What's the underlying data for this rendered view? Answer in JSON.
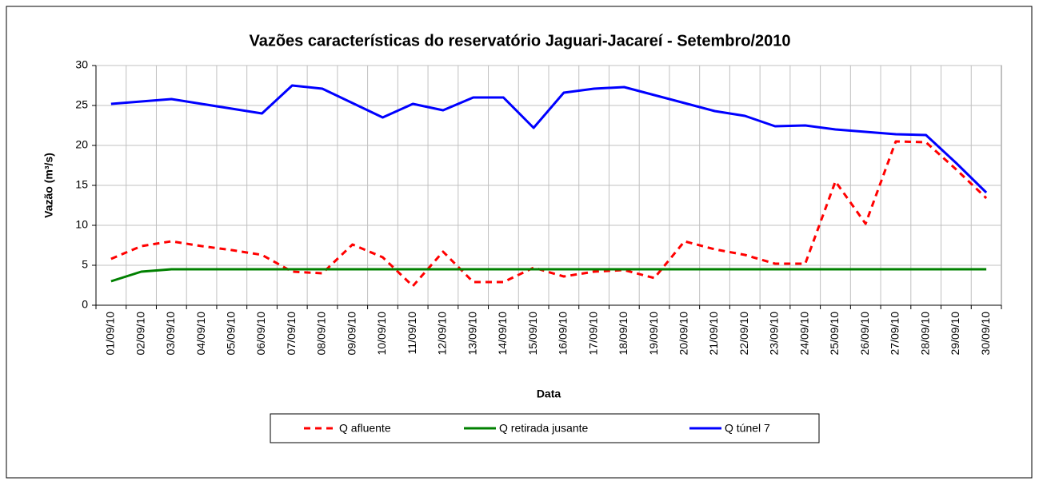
{
  "chart_data": {
    "type": "line",
    "title": "Vazões características do  reservatório Jaguari-Jacareí - Setembro/2010",
    "x_label": "Data",
    "y_label": "Vazão (m³/s)",
    "categories": [
      "01/09/10",
      "02/09/10",
      "03/09/10",
      "04/09/10",
      "05/09/10",
      "06/09/10",
      "07/09/10",
      "08/09/10",
      "09/09/10",
      "10/09/10",
      "11/09/10",
      "12/09/10",
      "13/09/10",
      "14/09/10",
      "15/09/10",
      "16/09/10",
      "17/09/10",
      "18/09/10",
      "19/09/10",
      "20/09/10",
      "21/09/10",
      "22/09/10",
      "23/09/10",
      "24/09/10",
      "25/09/10",
      "26/09/10",
      "27/09/10",
      "28/09/10",
      "29/09/10",
      "30/09/10"
    ],
    "series": [
      {
        "name": "Q afluente",
        "color": "#ff0000",
        "dash": true,
        "values": [
          5.8,
          7.4,
          8.0,
          7.4,
          6.9,
          6.3,
          4.2,
          4.0,
          7.6,
          6.0,
          2.4,
          6.7,
          2.9,
          2.9,
          4.7,
          3.6,
          4.2,
          4.4,
          3.4,
          8.0,
          7.0,
          6.3,
          5.2,
          5.2,
          15.5,
          10.2,
          20.5,
          20.4,
          17.0,
          13.4
        ]
      },
      {
        "name": "Q retirada jusante",
        "color": "#008000",
        "dash": false,
        "values": [
          3.0,
          4.2,
          4.5,
          4.5,
          4.5,
          4.5,
          4.5,
          4.5,
          4.5,
          4.5,
          4.5,
          4.5,
          4.5,
          4.5,
          4.5,
          4.5,
          4.5,
          4.5,
          4.5,
          4.5,
          4.5,
          4.5,
          4.5,
          4.5,
          4.5,
          4.5,
          4.5,
          4.5,
          4.5,
          4.5
        ]
      },
      {
        "name": "Q túnel 7",
        "color": "#0000ff",
        "dash": false,
        "values": [
          25.2,
          25.5,
          25.8,
          25.2,
          24.6,
          24.0,
          27.5,
          27.1,
          25.3,
          23.5,
          25.2,
          24.4,
          26.0,
          26.0,
          22.2,
          26.6,
          27.1,
          27.3,
          26.3,
          25.3,
          24.3,
          23.7,
          22.4,
          22.5,
          22.0,
          21.7,
          21.4,
          21.3,
          17.8,
          14.1
        ]
      }
    ],
    "ylim": [
      0,
      30
    ],
    "yticks": [
      0,
      5,
      10,
      15,
      20,
      25,
      30
    ],
    "grid": true
  }
}
